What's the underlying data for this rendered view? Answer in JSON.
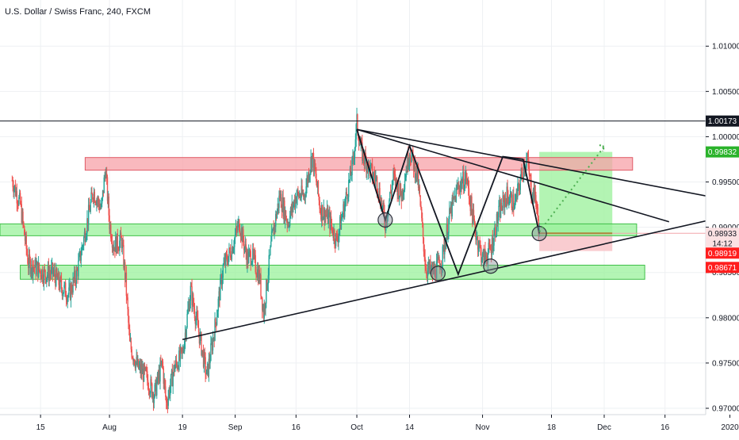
{
  "chart_data": {
    "type": "candlestick",
    "title": "U.S. Dollar / Swiss Franc, 240, FXCM",
    "xlabel": "",
    "ylabel": "",
    "ylim": [
      0.9693,
      1.0151
    ],
    "grid": true,
    "y_ticks": [
      0.97,
      0.975,
      0.98,
      0.985,
      0.99,
      0.995,
      1.0,
      1.005,
      1.01
    ],
    "y_tick_labels": [
      "0.97000",
      "0.97500",
      "0.98000",
      "0.98500",
      "0.99000",
      "0.99500",
      "1.00000",
      "1.00500",
      "1.01000"
    ],
    "x_ticks": [
      {
        "label": "15",
        "x": "2019-07-15"
      },
      {
        "label": "Aug",
        "x": "2019-08-01"
      },
      {
        "label": "19",
        "x": "2019-08-19"
      },
      {
        "label": "Sep",
        "x": "2019-09-01"
      },
      {
        "label": "16",
        "x": "2019-09-16"
      },
      {
        "label": "Oct",
        "x": "2019-10-01"
      },
      {
        "label": "14",
        "x": "2019-10-14"
      },
      {
        "label": "Nov",
        "x": "2019-11-01"
      },
      {
        "label": "18",
        "x": "2019-11-18"
      },
      {
        "label": "Dec",
        "x": "2019-12-01"
      },
      {
        "label": "16",
        "x": "2019-12-16"
      },
      {
        "label": "2020",
        "x": "2020-01-01"
      }
    ],
    "price_path": [
      [
        "2019-07-08",
        0.9952
      ],
      [
        "2019-07-10",
        0.9925
      ],
      [
        "2019-07-12",
        0.986
      ],
      [
        "2019-07-14",
        0.9855
      ],
      [
        "2019-07-16",
        0.9848
      ],
      [
        "2019-07-18",
        0.985
      ],
      [
        "2019-07-20",
        0.9835
      ],
      [
        "2019-07-22",
        0.9825
      ],
      [
        "2019-07-24",
        0.985
      ],
      [
        "2019-07-26",
        0.9895
      ],
      [
        "2019-07-28",
        0.994
      ],
      [
        "2019-07-30",
        0.992
      ],
      [
        "2019-07-31",
        0.9965
      ],
      [
        "2019-08-01",
        0.9905
      ],
      [
        "2019-08-02",
        0.988
      ],
      [
        "2019-08-04",
        0.9885
      ],
      [
        "2019-08-05",
        0.984
      ],
      [
        "2019-08-06",
        0.977
      ],
      [
        "2019-08-08",
        0.9745
      ],
      [
        "2019-08-10",
        0.9735
      ],
      [
        "2019-08-12",
        0.9715
      ],
      [
        "2019-08-14",
        0.975
      ],
      [
        "2019-08-15",
        0.9705
      ],
      [
        "2019-08-17",
        0.9745
      ],
      [
        "2019-08-19",
        0.976
      ],
      [
        "2019-08-21",
        0.983
      ],
      [
        "2019-08-23",
        0.9785
      ],
      [
        "2019-08-25",
        0.9735
      ],
      [
        "2019-08-27",
        0.979
      ],
      [
        "2019-08-29",
        0.9855
      ],
      [
        "2019-08-31",
        0.9875
      ],
      [
        "2019-09-02",
        0.9905
      ],
      [
        "2019-09-04",
        0.9865
      ],
      [
        "2019-09-05",
        0.987
      ],
      [
        "2019-09-07",
        0.9845
      ],
      [
        "2019-09-08",
        0.9805
      ],
      [
        "2019-09-10",
        0.9885
      ],
      [
        "2019-09-12",
        0.9935
      ],
      [
        "2019-09-14",
        0.9905
      ],
      [
        "2019-09-16",
        0.9935
      ],
      [
        "2019-09-18",
        0.9935
      ],
      [
        "2019-09-20",
        0.998
      ],
      [
        "2019-09-22",
        0.992
      ],
      [
        "2019-09-24",
        0.991
      ],
      [
        "2019-09-26",
        0.9885
      ],
      [
        "2019-09-28",
        0.9925
      ],
      [
        "2019-09-30",
        0.997
      ],
      [
        "2019-10-01",
        1.0015
      ],
      [
        "2019-10-02",
        0.9985
      ],
      [
        "2019-10-04",
        0.9965
      ],
      [
        "2019-10-06",
        0.995
      ],
      [
        "2019-10-08",
        0.9905
      ],
      [
        "2019-10-10",
        0.9955
      ],
      [
        "2019-10-12",
        0.9935
      ],
      [
        "2019-10-14",
        0.9985
      ],
      [
        "2019-10-16",
        0.9955
      ],
      [
        "2019-10-18",
        0.9855
      ],
      [
        "2019-10-20",
        0.985
      ],
      [
        "2019-10-22",
        0.9865
      ],
      [
        "2019-10-24",
        0.9915
      ],
      [
        "2019-10-26",
        0.9945
      ],
      [
        "2019-10-28",
        0.9955
      ],
      [
        "2019-10-30",
        0.99
      ],
      [
        "2019-11-01",
        0.9865
      ],
      [
        "2019-11-03",
        0.9875
      ],
      [
        "2019-11-05",
        0.9915
      ],
      [
        "2019-11-07",
        0.9935
      ],
      [
        "2019-11-09",
        0.9925
      ],
      [
        "2019-11-11",
        0.9965
      ],
      [
        "2019-11-12",
        0.9975
      ],
      [
        "2019-11-13",
        0.994
      ],
      [
        "2019-11-14",
        0.9935
      ],
      [
        "2019-11-15",
        0.9895
      ]
    ],
    "horizontal_lines": [
      {
        "name": "resistance-line",
        "y": 1.00173
      }
    ],
    "zones": [
      {
        "name": "resistance-zone",
        "kind": "resistance",
        "y_top": 0.9977,
        "y_bottom": 0.9963,
        "x_start": "2019-07-26",
        "x_end": "2019-12-08",
        "color": "#f7a1a8"
      },
      {
        "name": "support-zone-upper",
        "kind": "support",
        "y_top": 0.99037,
        "y_bottom": 0.98906,
        "x_start": "2019-07-05",
        "x_end": "2019-12-09",
        "color": "#99f29b"
      },
      {
        "name": "support-zone-lower",
        "kind": "support",
        "y_top": 0.98581,
        "y_bottom": 0.98425,
        "x_start": "2019-07-10",
        "x_end": "2019-12-11",
        "color": "#99f29b"
      }
    ],
    "trendlines": [
      {
        "name": "descending-trendline-upper",
        "points": [
          [
            "2019-10-01",
            1.0008
          ],
          [
            "2020-01-04",
            0.9927
          ]
        ]
      },
      {
        "name": "descending-trendline-lower",
        "points": [
          [
            "2019-10-01",
            1.0008
          ],
          [
            "2019-12-17",
            0.9906
          ]
        ]
      },
      {
        "name": "ascending-trendline",
        "points": [
          [
            "2019-08-19",
            0.9776
          ],
          [
            "2020-01-04",
            0.9916
          ]
        ]
      }
    ],
    "wave_pattern": [
      [
        "2019-10-01",
        1.0008
      ],
      [
        "2019-10-08",
        0.9908
      ],
      [
        "2019-10-14",
        0.999
      ],
      [
        "2019-10-26",
        0.9848
      ],
      [
        "2019-11-06",
        0.9978
      ],
      [
        "2019-11-11",
        0.9975
      ],
      [
        "2019-11-15",
        0.9893
      ]
    ],
    "pattern_markers": [
      [
        "2019-10-08",
        0.9908
      ],
      [
        "2019-10-21",
        0.9849
      ],
      [
        "2019-11-03",
        0.9857
      ],
      [
        "2019-11-15",
        0.9893
      ]
    ],
    "position": {
      "entry": 0.98933,
      "target": 0.99832,
      "stop": 0.98737,
      "x_start": "2019-11-15",
      "x_end": "2019-12-03",
      "profit_color": "#a6f2a6",
      "loss_color": "#f8c7cb",
      "entry_line_color": "#b1833e"
    },
    "projection": {
      "points": [
        [
          "2019-11-15",
          0.9895
        ],
        [
          "2019-12-01",
          0.9989
        ]
      ],
      "color": "#4caf50"
    },
    "price_tags": [
      {
        "value": "1.00173",
        "y": 1.00173,
        "bg": "#131722",
        "fg": "#ffffff"
      },
      {
        "value": "0.99832",
        "y": 0.99832,
        "bg": "#2bb32b",
        "fg": "#ffffff"
      },
      {
        "value": "0.98933",
        "y": 0.98933,
        "bg": "#fbe1e3",
        "fg": "#131722"
      },
      {
        "value": "14:12",
        "y": 0.98821,
        "bg": "#fbe1e3",
        "fg": "#131722"
      },
      {
        "value": "0.98919",
        "y": 0.98714,
        "bg": "#ff1e1e",
        "fg": "#ffffff"
      },
      {
        "value": "0.98671",
        "y": 0.98556,
        "bg": "#ff1e1e",
        "fg": "#ffffff"
      }
    ],
    "colors": {
      "up": "#26a69a",
      "down": "#ef5350",
      "grid": "#eef0f3",
      "axis": "#d6d9de"
    }
  }
}
